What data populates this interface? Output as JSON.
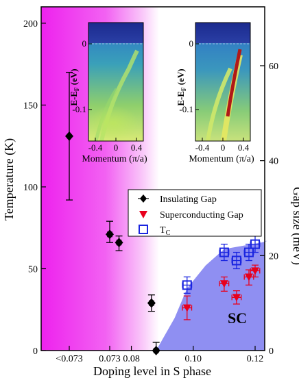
{
  "chart_data": {
    "type": "scatter",
    "xlabel": "Doping level in S phase",
    "ylabel_left": "Temperature (K)",
    "ylabel_right": "Gap size (meV)",
    "ylim_left": [
      0,
      210
    ],
    "yticks_left": [
      0,
      50,
      100,
      150,
      200
    ],
    "ylim_right": [
      0,
      72.4
    ],
    "yticks_right": [
      0,
      20,
      40,
      60
    ],
    "xticks": [
      "<0.073",
      "0.073",
      "0.08",
      "0.10",
      "0.12"
    ],
    "region_label": "SC",
    "colors": {
      "insulating_bg": "#ee22ee",
      "sc_dome": "#8f8ff2",
      "insulating": "#000000",
      "superconducting": "#e8001c",
      "tc": "#1a25e0"
    },
    "legend_position": "center-right",
    "series": [
      {
        "name": "Insulating Gap",
        "marker": "diamond",
        "axis": "left",
        "points": [
          {
            "x": "<0.073",
            "y": 131,
            "yerr": [
              92,
              170
            ]
          },
          {
            "x": 0.073,
            "y": 71,
            "yerr": [
              66,
              79
            ],
            "xerr": 0.0007
          },
          {
            "x": 0.076,
            "y": 66,
            "yerr": [
              61,
              70
            ],
            "xerr": 0.0007
          },
          {
            "x": 0.0865,
            "y": 29,
            "yerr": [
              24,
              34
            ],
            "xerr": 0.0007
          },
          {
            "x": 0.088,
            "y": 0,
            "yerr": [
              0,
              5
            ],
            "xerr": 0.0007
          }
        ]
      },
      {
        "name": "Superconducting Gap",
        "marker": "triangle-down",
        "axis": "right",
        "points": [
          {
            "x": 0.098,
            "y": 9.0,
            "yerr": [
              6.5,
              11.5
            ],
            "xerr": 0.0015
          },
          {
            "x": 0.11,
            "y": 14.1,
            "yerr": [
              12.5,
              15.5
            ],
            "xerr": 0.0015
          },
          {
            "x": 0.114,
            "y": 11.2,
            "yerr": [
              9.8,
              12.6
            ],
            "xerr": 0.0015
          },
          {
            "x": 0.118,
            "y": 15.5,
            "yerr": [
              13.8,
              17.0
            ],
            "xerr": 0.0015
          },
          {
            "x": 0.12,
            "y": 16.8,
            "yerr": [
              15.5,
              18.0
            ],
            "xerr": 0.0015
          }
        ]
      },
      {
        "name": "T_C",
        "marker": "square-open",
        "axis": "left",
        "points": [
          {
            "x": 0.098,
            "y": 40,
            "yerr": [
              35,
              45
            ],
            "xerr": 0.0015
          },
          {
            "x": 0.11,
            "y": 60,
            "yerr": [
              55,
              65
            ],
            "xerr": 0.0015
          },
          {
            "x": 0.114,
            "y": 55,
            "yerr": [
              50,
              60
            ],
            "xerr": 0.0015
          },
          {
            "x": 0.118,
            "y": 60,
            "yerr": [
              55,
              65
            ],
            "xerr": 0.0015
          },
          {
            "x": 0.12,
            "y": 65,
            "yerr": [
              60,
              70
            ],
            "xerr": 0.0015
          }
        ]
      }
    ],
    "sc_dome_boundary": [
      {
        "x": 0.088,
        "y": 0
      },
      {
        "x": 0.094,
        "y": 20
      },
      {
        "x": 0.098,
        "y": 38
      },
      {
        "x": 0.104,
        "y": 52
      },
      {
        "x": 0.11,
        "y": 62
      },
      {
        "x": 0.116,
        "y": 64
      },
      {
        "x": 0.122,
        "y": 66
      },
      {
        "x": 0.124,
        "y": 67
      }
    ],
    "insets": [
      {
        "name": "left-inset",
        "ylabel": "E-E",
        "ylabel_sub": "F",
        "ylabel_unit": " (eV)",
        "xlabel": "Momentum (π/a)",
        "yticks": [
          "0",
          "-0.1"
        ],
        "xticks": [
          "-0.4",
          "0",
          "0.4"
        ]
      },
      {
        "name": "right-inset",
        "ylabel": "E-E",
        "ylabel_sub": "F",
        "ylabel_unit": " (eV)",
        "xlabel": "Momentum (π/a)",
        "yticks": [
          "0",
          "-0.1"
        ],
        "xticks": [
          "-0.4",
          "0",
          "0.4"
        ]
      }
    ]
  }
}
